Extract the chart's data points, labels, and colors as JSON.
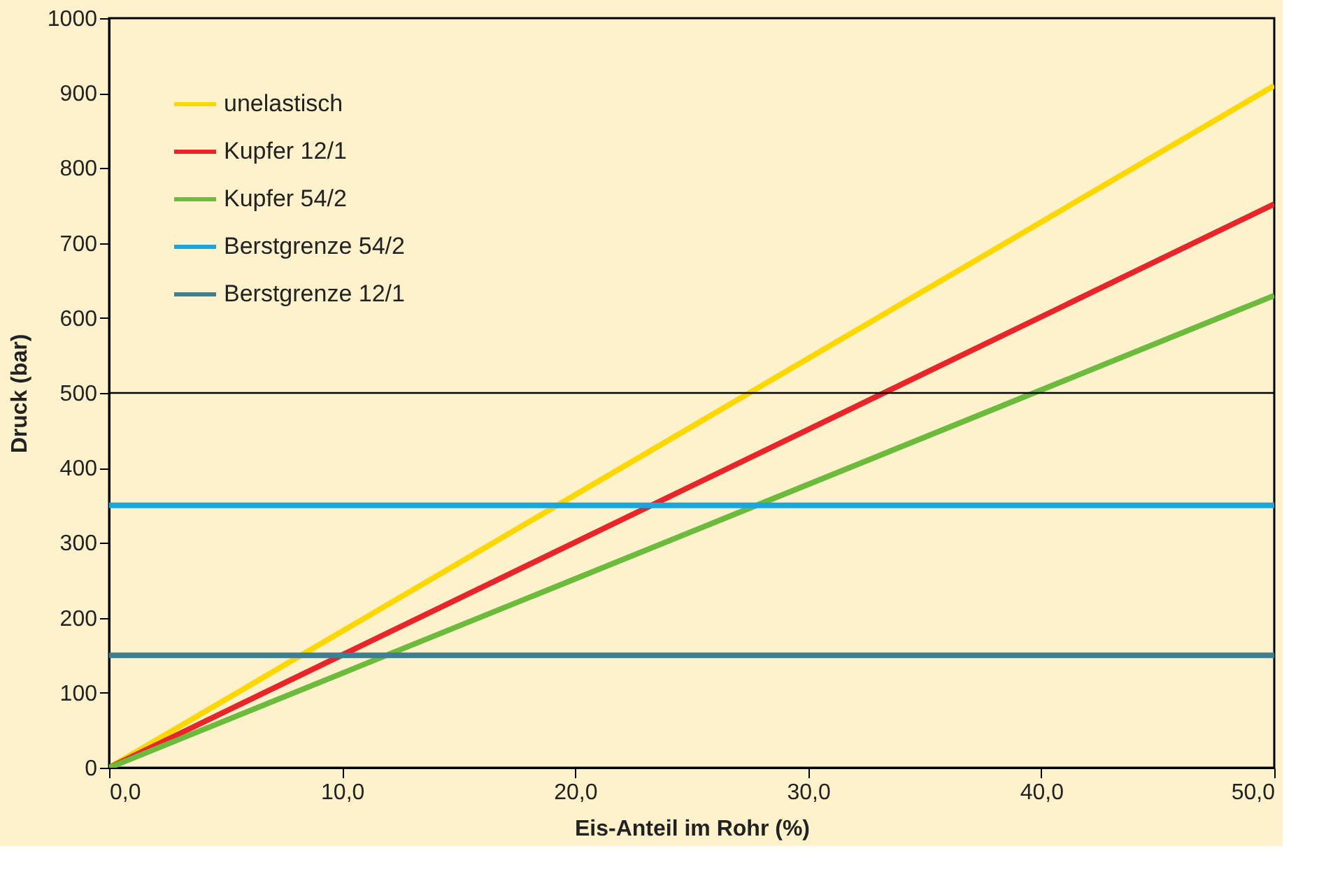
{
  "chart_data": {
    "type": "line",
    "xlabel": "Eis-Anteil im Rohr (%)",
    "ylabel": "Druck (bar)",
    "xlim": [
      0,
      50
    ],
    "xticks": [
      {
        "value": 0,
        "label": "0,0"
      },
      {
        "value": 10,
        "label": "10,0"
      },
      {
        "value": 20,
        "label": "20,0"
      },
      {
        "value": 30,
        "label": "30,0"
      },
      {
        "value": 40,
        "label": "40,0"
      },
      {
        "value": 50,
        "label": "50,0"
      }
    ],
    "ylim": [
      0,
      1000
    ],
    "yticks": [
      0,
      100,
      200,
      300,
      400,
      500,
      600,
      700,
      800,
      900,
      1000
    ],
    "x": [
      0,
      50
    ],
    "series": [
      {
        "name": "unelastisch",
        "color": "#fcd700",
        "values": [
          0,
          910
        ]
      },
      {
        "name": "Kupfer 12/1",
        "color": "#e8262a",
        "values": [
          0,
          752
        ]
      },
      {
        "name": "Kupfer 54/2",
        "color": "#6cbb3c",
        "values": [
          0,
          630
        ]
      },
      {
        "name": "Berstgrenze 54/2",
        "color": "#1aa5dc",
        "values": [
          350,
          350
        ]
      },
      {
        "name": "Berstgrenze 12/1",
        "color": "#3f7f93",
        "values": [
          150,
          150
        ]
      }
    ],
    "ref_lines": [
      {
        "axis": "y",
        "value": 500,
        "color": "#000000"
      }
    ],
    "grid": false,
    "legend": "top left",
    "marker": "none",
    "line_style": "solid"
  }
}
